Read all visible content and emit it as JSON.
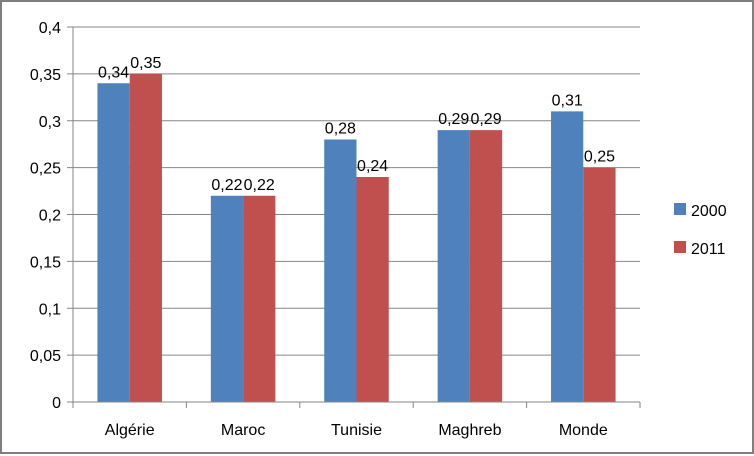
{
  "chart_data": {
    "type": "bar",
    "categories": [
      "Algérie",
      "Maroc",
      "Tunisie",
      "Maghreb",
      "Monde"
    ],
    "series": [
      {
        "name": "2000",
        "color": "#4f81bd",
        "values": [
          0.34,
          0.22,
          0.28,
          0.29,
          0.31
        ],
        "labels": [
          "0,34",
          "0,22",
          "0,28",
          "0,29",
          "0,31"
        ]
      },
      {
        "name": "2011",
        "color": "#c0504d",
        "values": [
          0.35,
          0.22,
          0.24,
          0.29,
          0.25
        ],
        "labels": [
          "0,35",
          "0,22",
          "0,24",
          "0,29",
          "0,25"
        ]
      }
    ],
    "ylim": [
      0,
      0.4
    ],
    "yticks": [
      0,
      0.05,
      0.1,
      0.15,
      0.2,
      0.25,
      0.3,
      0.35,
      0.4
    ],
    "ytick_labels": [
      "0",
      "0,05",
      "0,1",
      "0,15",
      "0,2",
      "0,25",
      "0,3",
      "0,35",
      "0,4"
    ],
    "grid": true,
    "legend_position": "right",
    "title": "",
    "xlabel": "",
    "ylabel": ""
  }
}
